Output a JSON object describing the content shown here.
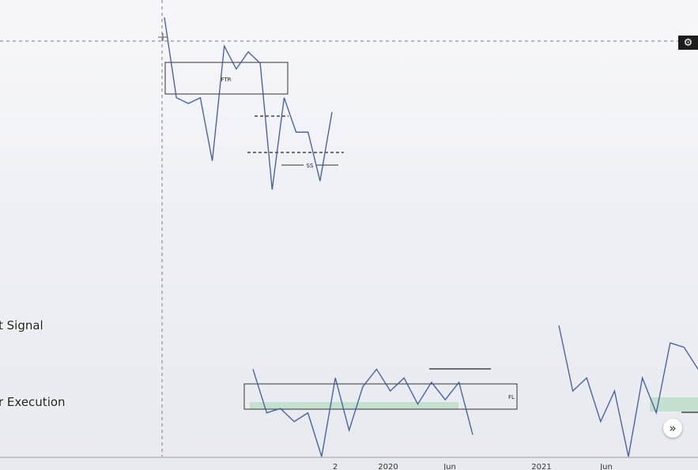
{
  "chart_data": [
    {
      "type": "line",
      "panel": "upper",
      "series": [
        {
          "points": [
            [
              0,
              100
            ],
            [
              1,
              72
            ],
            [
              2,
              70
            ],
            [
              3,
              72
            ],
            [
              4,
              50
            ],
            [
              5,
              90
            ],
            [
              6,
              82
            ],
            [
              7,
              88
            ],
            [
              8,
              84
            ],
            [
              9,
              40
            ],
            [
              10,
              72
            ],
            [
              11,
              60
            ],
            [
              12,
              60
            ],
            [
              13,
              43
            ],
            [
              14,
              67
            ]
          ]
        }
      ],
      "annotations": [
        {
          "kind": "box",
          "label": "FTR"
        },
        {
          "kind": "dashed-line"
        },
        {
          "kind": "dashed-line"
        },
        {
          "kind": "line",
          "label": "SS"
        }
      ]
    },
    {
      "type": "line",
      "panel": "lower",
      "series": [
        {
          "points": [
            [
              0,
              30
            ],
            [
              1,
              20
            ],
            [
              2,
              21
            ],
            [
              3,
              18
            ],
            [
              4,
              20
            ],
            [
              5,
              10
            ],
            [
              6,
              28
            ],
            [
              7,
              16
            ],
            [
              8,
              26
            ],
            [
              9,
              30
            ],
            [
              10,
              25
            ],
            [
              11,
              28
            ],
            [
              12,
              22
            ],
            [
              13,
              27
            ],
            [
              14,
              23
            ],
            [
              15,
              27
            ],
            [
              16,
              15
            ]
          ]
        },
        {
          "points": [
            [
              0,
              40
            ],
            [
              1,
              25
            ],
            [
              2,
              28
            ],
            [
              3,
              18
            ],
            [
              4,
              25
            ],
            [
              5,
              10
            ],
            [
              6,
              28
            ],
            [
              7,
              20
            ],
            [
              8,
              36
            ],
            [
              9,
              35
            ],
            [
              10,
              30
            ]
          ]
        }
      ],
      "annotations": [
        {
          "kind": "box",
          "label": "FL"
        },
        {
          "kind": "line"
        }
      ],
      "x_tick_labels": [
        "2",
        "2020",
        "Jun",
        "2021",
        "Jun"
      ]
    }
  ],
  "labels": {
    "signal": "t Signal",
    "execution": "r Execution"
  },
  "ui": {
    "gear_icon": "⚙",
    "nav_icon": "»"
  },
  "colors": {
    "line": "#3d5ba8",
    "box": "#333333",
    "zone": "#b5dcc0",
    "crosshair": "#7a7a88"
  }
}
